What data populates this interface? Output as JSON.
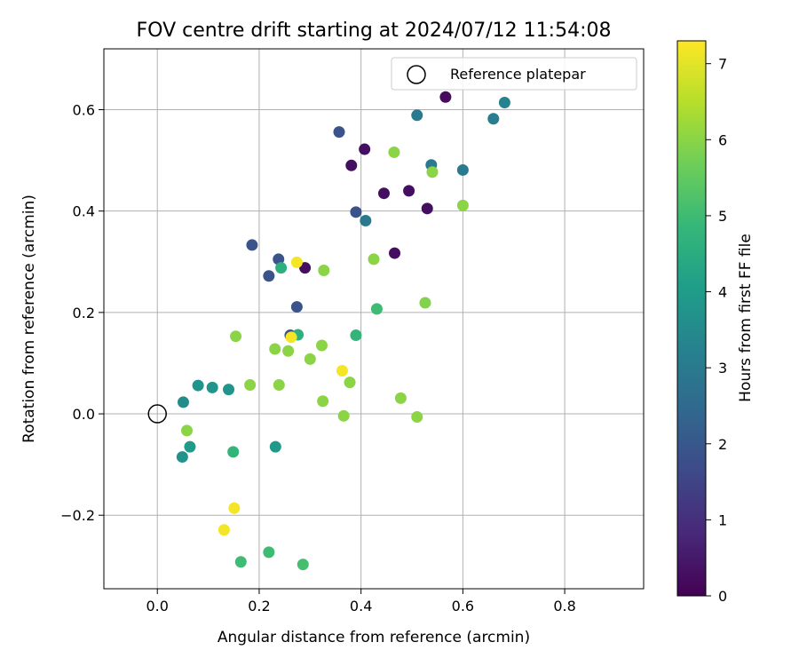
{
  "chart_data": {
    "type": "scatter",
    "title": "FOV centre drift starting at 2024/07/12 11:54:08",
    "xlabel": "Angular distance from reference (arcmin)",
    "ylabel": "Rotation from reference (arcmin)",
    "xlim": [
      -0.105,
      0.955
    ],
    "ylim": [
      -0.345,
      0.72
    ],
    "xticks": [
      0.0,
      0.2,
      0.4,
      0.6,
      0.8
    ],
    "xtick_labels": [
      "0.0",
      "0.2",
      "0.4",
      "0.6",
      "0.8"
    ],
    "yticks": [
      -0.2,
      0.0,
      0.2,
      0.4,
      0.6
    ],
    "ytick_labels": [
      "−0.2",
      "0.0",
      "0.2",
      "0.4",
      "0.6"
    ],
    "grid": true,
    "legend": {
      "placement": "top-right",
      "entries": [
        "Reference platepar"
      ]
    },
    "reference_point": {
      "x": 0.0,
      "y": 0.0
    },
    "colorbar": {
      "label": "Hours from first FF file",
      "range": [
        0,
        7.3
      ],
      "ticks": [
        0,
        1,
        2,
        3,
        4,
        5,
        6,
        7
      ],
      "tick_labels": [
        "0",
        "1",
        "2",
        "3",
        "4",
        "5",
        "6",
        "7"
      ],
      "colormap": "viridis"
    },
    "points": [
      {
        "x": 0.566,
        "y": 0.625,
        "hours": 0.2
      },
      {
        "x": 0.407,
        "y": 0.522,
        "hours": 0.3
      },
      {
        "x": 0.381,
        "y": 0.49,
        "hours": 0.3
      },
      {
        "x": 0.445,
        "y": 0.435,
        "hours": 0.3
      },
      {
        "x": 0.494,
        "y": 0.44,
        "hours": 0.3
      },
      {
        "x": 0.53,
        "y": 0.405,
        "hours": 0.3
      },
      {
        "x": 0.466,
        "y": 0.317,
        "hours": 0.3
      },
      {
        "x": 0.29,
        "y": 0.288,
        "hours": 0.3
      },
      {
        "x": 0.357,
        "y": 0.556,
        "hours": 1.9
      },
      {
        "x": 0.39,
        "y": 0.398,
        "hours": 1.9
      },
      {
        "x": 0.186,
        "y": 0.333,
        "hours": 1.9
      },
      {
        "x": 0.238,
        "y": 0.305,
        "hours": 1.9
      },
      {
        "x": 0.219,
        "y": 0.272,
        "hours": 1.9
      },
      {
        "x": 0.274,
        "y": 0.211,
        "hours": 1.9
      },
      {
        "x": 0.261,
        "y": 0.155,
        "hours": 1.9
      },
      {
        "x": 0.682,
        "y": 0.614,
        "hours": 3.2
      },
      {
        "x": 0.51,
        "y": 0.589,
        "hours": 3.0
      },
      {
        "x": 0.66,
        "y": 0.582,
        "hours": 3.1
      },
      {
        "x": 0.538,
        "y": 0.491,
        "hours": 3.0
      },
      {
        "x": 0.6,
        "y": 0.481,
        "hours": 3.0
      },
      {
        "x": 0.409,
        "y": 0.381,
        "hours": 3.0
      },
      {
        "x": 0.051,
        "y": 0.023,
        "hours": 3.5
      },
      {
        "x": 0.08,
        "y": 0.056,
        "hours": 3.8
      },
      {
        "x": 0.108,
        "y": 0.052,
        "hours": 3.8
      },
      {
        "x": 0.14,
        "y": 0.048,
        "hours": 3.8
      },
      {
        "x": 0.049,
        "y": -0.085,
        "hours": 3.7
      },
      {
        "x": 0.064,
        "y": -0.065,
        "hours": 4.0
      },
      {
        "x": 0.232,
        "y": -0.065,
        "hours": 3.9
      },
      {
        "x": 0.243,
        "y": 0.288,
        "hours": 4.6
      },
      {
        "x": 0.276,
        "y": 0.156,
        "hours": 4.6
      },
      {
        "x": 0.39,
        "y": 0.155,
        "hours": 4.8
      },
      {
        "x": 0.431,
        "y": 0.207,
        "hours": 5.0
      },
      {
        "x": 0.149,
        "y": -0.075,
        "hours": 4.8
      },
      {
        "x": 0.164,
        "y": -0.292,
        "hours": 5.0
      },
      {
        "x": 0.219,
        "y": -0.273,
        "hours": 5.0
      },
      {
        "x": 0.286,
        "y": -0.297,
        "hours": 5.1
      },
      {
        "x": 0.465,
        "y": 0.516,
        "hours": 6.0
      },
      {
        "x": 0.54,
        "y": 0.477,
        "hours": 6.0
      },
      {
        "x": 0.6,
        "y": 0.411,
        "hours": 6.0
      },
      {
        "x": 0.425,
        "y": 0.305,
        "hours": 6.0
      },
      {
        "x": 0.327,
        "y": 0.283,
        "hours": 6.0
      },
      {
        "x": 0.526,
        "y": 0.219,
        "hours": 5.9
      },
      {
        "x": 0.154,
        "y": 0.153,
        "hours": 6.0
      },
      {
        "x": 0.231,
        "y": 0.128,
        "hours": 6.0
      },
      {
        "x": 0.257,
        "y": 0.124,
        "hours": 6.0
      },
      {
        "x": 0.323,
        "y": 0.135,
        "hours": 6.0
      },
      {
        "x": 0.3,
        "y": 0.108,
        "hours": 6.0
      },
      {
        "x": 0.182,
        "y": 0.057,
        "hours": 6.0
      },
      {
        "x": 0.239,
        "y": 0.057,
        "hours": 6.0
      },
      {
        "x": 0.378,
        "y": 0.062,
        "hours": 6.0
      },
      {
        "x": 0.325,
        "y": 0.025,
        "hours": 6.0
      },
      {
        "x": 0.478,
        "y": 0.031,
        "hours": 6.0
      },
      {
        "x": 0.366,
        "y": -0.004,
        "hours": 6.0
      },
      {
        "x": 0.51,
        "y": -0.006,
        "hours": 6.0
      },
      {
        "x": 0.058,
        "y": -0.033,
        "hours": 6.0
      },
      {
        "x": 0.274,
        "y": 0.299,
        "hours": 7.2
      },
      {
        "x": 0.263,
        "y": 0.151,
        "hours": 7.2
      },
      {
        "x": 0.363,
        "y": 0.085,
        "hours": 7.2
      },
      {
        "x": 0.151,
        "y": -0.186,
        "hours": 7.2
      },
      {
        "x": 0.131,
        "y": -0.229,
        "hours": 7.2
      }
    ]
  }
}
